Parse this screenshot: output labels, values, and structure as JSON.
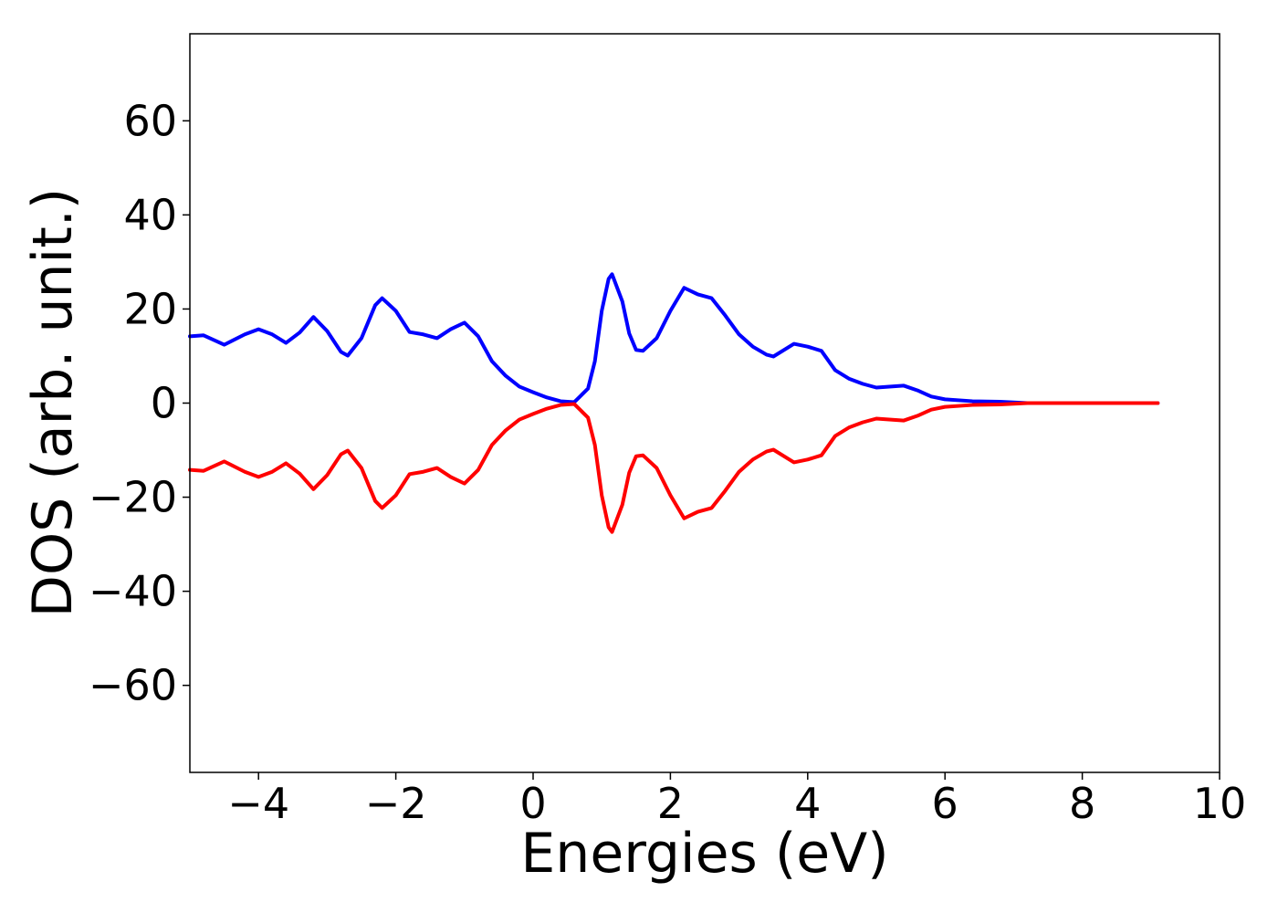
{
  "chart_data": {
    "type": "line",
    "xlabel": "Energies (eV)",
    "ylabel": "DOS (arb. unit.)",
    "x": [
      -5,
      -4.8,
      -4.5,
      -4.2,
      -4.0,
      -3.8,
      -3.6,
      -3.4,
      -3.2,
      -3.0,
      -2.8,
      -2.7,
      -2.5,
      -2.3,
      -2.2,
      -2.0,
      -1.8,
      -1.6,
      -1.4,
      -1.2,
      -1.0,
      -0.8,
      -0.6,
      -0.4,
      -0.2,
      0,
      0.2,
      0.4,
      0.6,
      0.8,
      0.9,
      1.0,
      1.1,
      1.15,
      1.3,
      1.4,
      1.5,
      1.6,
      1.8,
      2.0,
      2.2,
      2.4,
      2.6,
      2.8,
      3.0,
      3.2,
      3.4,
      3.5,
      3.8,
      4.0,
      4.2,
      4.4,
      4.6,
      4.8,
      5.0,
      5.4,
      5.6,
      5.8,
      6.0,
      6.4,
      6.8,
      7.2,
      9.1
    ],
    "series": [
      {
        "color": "#0000ff",
        "values": [
          14.2,
          14.4,
          12.4,
          14.6,
          15.7,
          14.6,
          12.8,
          15,
          18.3,
          15.3,
          10.9,
          10.1,
          13.8,
          20.8,
          22.3,
          19.6,
          15.1,
          14.6,
          13.8,
          15.7,
          17.1,
          14.2,
          8.9,
          5.8,
          3.5,
          2.3,
          1.2,
          0.4,
          0.2,
          3.1,
          8.9,
          19.6,
          26.4,
          27.4,
          21.6,
          14.8,
          11.3,
          11.1,
          13.8,
          19.6,
          24.5,
          23.1,
          22.3,
          18.6,
          14.6,
          12,
          10.3,
          9.9,
          12.6,
          12,
          11.1,
          7,
          5.2,
          4.1,
          3.3,
          3.7,
          2.7,
          1.4,
          0.8,
          0.4,
          0.3,
          0,
          0
        ]
      },
      {
        "color": "#ff0000",
        "values": [
          -14.2,
          -14.4,
          -12.4,
          -14.6,
          -15.7,
          -14.6,
          -12.8,
          -15,
          -18.3,
          -15.3,
          -10.9,
          -10.1,
          -13.8,
          -20.8,
          -22.3,
          -19.6,
          -15.1,
          -14.6,
          -13.8,
          -15.7,
          -17.1,
          -14.2,
          -8.9,
          -5.8,
          -3.5,
          -2.3,
          -1.2,
          -0.4,
          -0.2,
          -3.1,
          -8.9,
          -19.6,
          -26.4,
          -27.4,
          -21.6,
          -14.8,
          -11.3,
          -11.1,
          -13.8,
          -19.6,
          -24.5,
          -23.1,
          -22.3,
          -18.6,
          -14.6,
          -12,
          -10.3,
          -9.9,
          -12.6,
          -12,
          -11.1,
          -7,
          -5.2,
          -4.1,
          -3.3,
          -3.7,
          -2.7,
          -1.4,
          -0.8,
          -0.4,
          -0.3,
          0,
          0
        ]
      }
    ],
    "xlim": [
      -5,
      10
    ],
    "xticks": [
      {
        "value": -4,
        "label": "−4"
      },
      {
        "value": -2,
        "label": "−2"
      },
      0,
      2,
      4,
      6,
      8,
      10
    ],
    "ylim": [
      -78.5,
      78.5
    ],
    "yticks": [
      {
        "value": -60,
        "label": "−60"
      },
      {
        "value": -40,
        "label": "−40"
      },
      {
        "value": -20,
        "label": "−20"
      },
      0,
      20,
      40,
      60
    ],
    "grid": false
  }
}
